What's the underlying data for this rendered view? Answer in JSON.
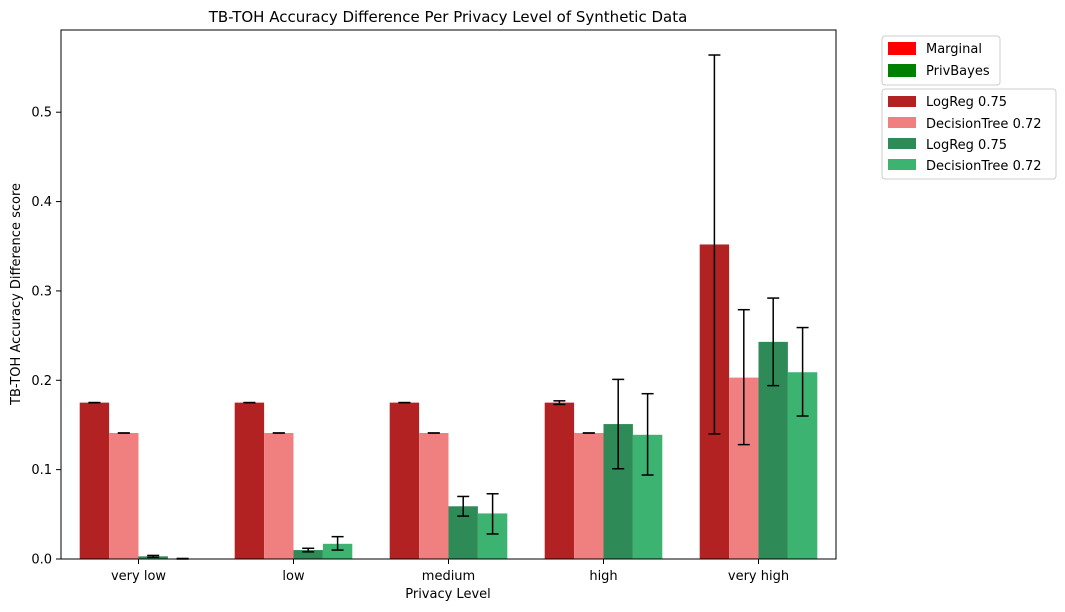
{
  "chart_data": {
    "type": "bar",
    "title": "TB-TOH Accuracy Difference Per Privacy Level of Synthetic Data",
    "xlabel": "Privacy Level",
    "ylabel": "TB-TOH Accuracy Difference score",
    "categories": [
      "very low",
      "low",
      "medium",
      "high",
      "very high"
    ],
    "ylim": [
      0,
      0.592
    ],
    "yticks": [
      0.0,
      0.1,
      0.2,
      0.3,
      0.4,
      0.5
    ],
    "ytick_labels": [
      "0.0",
      "0.1",
      "0.2",
      "0.3",
      "0.4",
      "0.5"
    ],
    "grid": false,
    "legend_position": "outside top-right",
    "legend_groups": [
      {
        "label": "Marginal",
        "color": "#ff0000"
      },
      {
        "label": "PrivBayes",
        "color": "#008000"
      }
    ],
    "series": [
      {
        "name": "LogReg 0.75",
        "group": "Marginal",
        "color": "#b22222",
        "values": [
          0.175,
          0.175,
          0.175,
          0.175,
          0.352
        ],
        "error_low": [
          0.175,
          0.175,
          0.175,
          0.173,
          0.14
        ],
        "error_high": [
          0.175,
          0.175,
          0.175,
          0.177,
          0.564
        ]
      },
      {
        "name": "DecisionTree 0.72",
        "group": "Marginal",
        "color": "#f08080",
        "values": [
          0.141,
          0.141,
          0.141,
          0.141,
          0.203
        ],
        "error_low": [
          0.141,
          0.141,
          0.141,
          0.141,
          0.128
        ],
        "error_high": [
          0.141,
          0.141,
          0.141,
          0.141,
          0.279
        ]
      },
      {
        "name": "LogReg 0.75",
        "group": "PrivBayes",
        "color": "#2e8b57",
        "values": [
          0.003,
          0.01,
          0.059,
          0.151,
          0.243
        ],
        "error_low": [
          0.002,
          0.008,
          0.048,
          0.101,
          0.194
        ],
        "error_high": [
          0.004,
          0.012,
          0.07,
          0.201,
          0.292
        ]
      },
      {
        "name": "DecisionTree 0.72",
        "group": "PrivBayes",
        "color": "#3cb371",
        "values": [
          0.0003,
          0.017,
          0.051,
          0.139,
          0.209
        ],
        "error_low": [
          0.0,
          0.01,
          0.028,
          0.094,
          0.16
        ],
        "error_high": [
          0.0006,
          0.025,
          0.073,
          0.185,
          0.259
        ]
      }
    ]
  }
}
